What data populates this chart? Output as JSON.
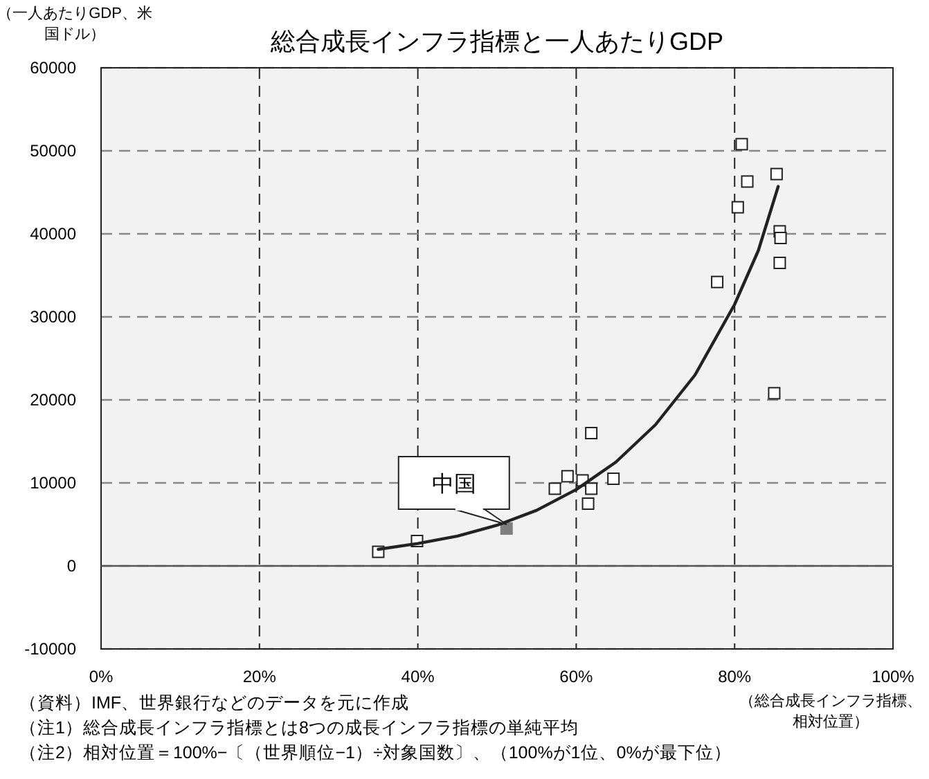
{
  "chart_data": {
    "type": "scatter",
    "title": "総合成長インフラ指標と一人あたりGDP",
    "ylabel": "（一人あたりGDP、米国ドル）",
    "xlabel": "（総合成長インフラ指標、相対位置）",
    "xlim": [
      0,
      100
    ],
    "ylim": [
      -10000,
      60000
    ],
    "xticks": [
      {
        "value": 0,
        "label": "0%"
      },
      {
        "value": 20,
        "label": "20%"
      },
      {
        "value": 40,
        "label": "40%"
      },
      {
        "value": 60,
        "label": "60%"
      },
      {
        "value": 80,
        "label": "80%"
      },
      {
        "value": 100,
        "label": "100%"
      }
    ],
    "yticks": [
      -10000,
      0,
      10000,
      20000,
      30000,
      40000,
      50000,
      60000
    ],
    "grid": true,
    "marker": "square",
    "ref_lines": [
      {
        "axis": "y",
        "value": 0,
        "color": "#555555",
        "line_style": "solid"
      }
    ],
    "series": [
      {
        "color": "#ffffff",
        "x": [
          35.0,
          39.9,
          57.3,
          58.9,
          60.8,
          61.9,
          61.5,
          61.9,
          64.7,
          77.8,
          80.9,
          81.6,
          80.4,
          85.3,
          85.7,
          85.8,
          85.7,
          85.0
        ],
        "values": [
          1700,
          3000,
          9300,
          10800,
          10300,
          9300,
          7500,
          16000,
          10500,
          34200,
          50800,
          46300,
          43200,
          47200,
          40300,
          39500,
          36500,
          20800
        ]
      },
      {
        "color": "#7f7f7f",
        "x": [
          51.2
        ],
        "values": [
          4500
        ]
      },
      {
        "type": "line",
        "marker": "none",
        "color": "#222222",
        "x": [
          35,
          40,
          45,
          50,
          55,
          60,
          65,
          70,
          75,
          80,
          83,
          85.5
        ],
        "values": [
          2000,
          2700,
          3600,
          4900,
          6700,
          9200,
          12500,
          17000,
          23000,
          31500,
          38000,
          45700
        ]
      }
    ],
    "annotations": [
      {
        "text": "中国",
        "x": 51.2,
        "y": 4500
      },
      "（資料）IMF、世界銀行などのデータを元に作成",
      "（注1）総合成長インフラ指標とは8つの成長インフラ指標の単純平均",
      "（注2）相対位置＝100%−〔（世界順位−1）÷対象国数〕、（100%が1位、0%が最下位）"
    ]
  }
}
